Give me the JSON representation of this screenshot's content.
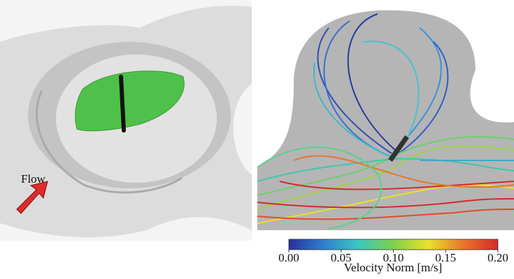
{
  "left_panel": {
    "flow_label": "Flow"
  },
  "colorbar": {
    "label": "Velocity Norm [m/s]",
    "lim": [
      0,
      0.2
    ],
    "ticks": [
      {
        "value": 0,
        "label": "0.00"
      },
      {
        "value": 0.05,
        "label": "0.05"
      },
      {
        "value": 0.1,
        "label": "0.10"
      },
      {
        "value": 0.15,
        "label": "0.15"
      },
      {
        "value": 0.2,
        "label": "0.20"
      }
    ],
    "colors": [
      "#2a2f9a",
      "#2f7fd0",
      "#3cc7c0",
      "#7ed04a",
      "#e9e12c",
      "#e8762a",
      "#d42a2a"
    ]
  }
}
